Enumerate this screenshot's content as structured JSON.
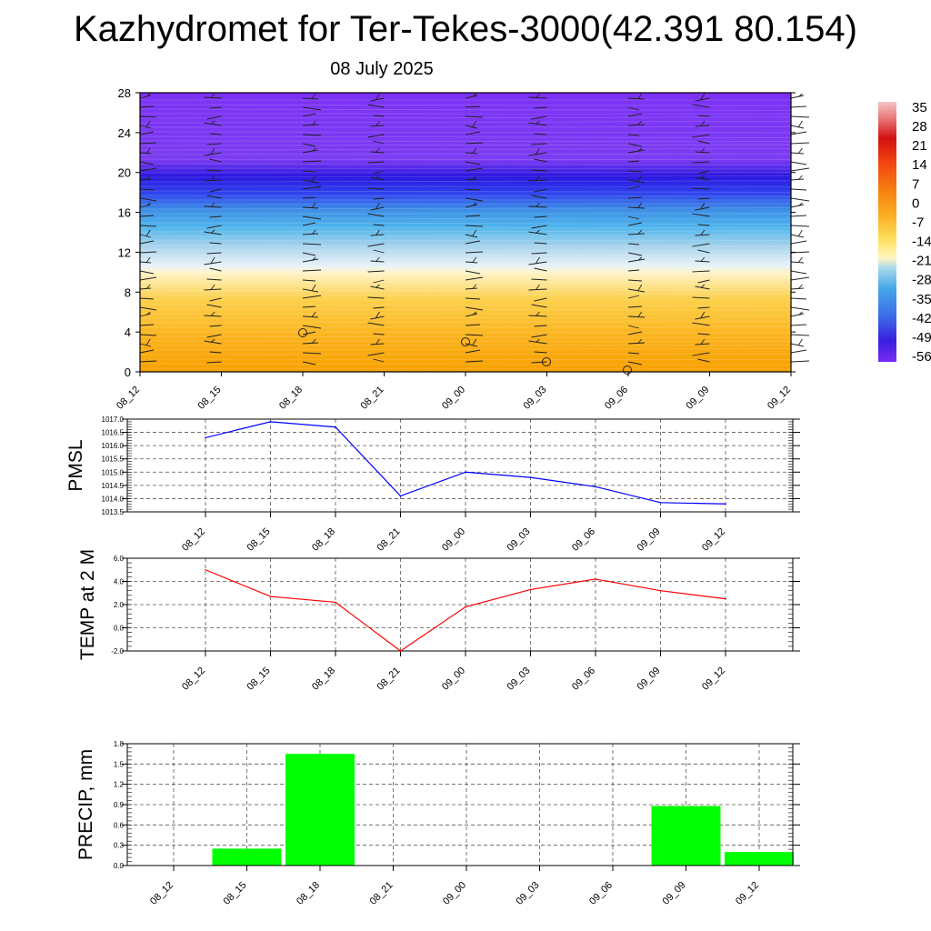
{
  "header": {
    "title": "Kazhydromet for Ter-Tekes-3000(42.391 80.154)",
    "subtitle": "08 July 2025"
  },
  "colors": {
    "pmsl_line": "#0000ff",
    "temp_line": "#ff0000",
    "precip_bar": "#00ff00"
  },
  "chart_data": [
    {
      "type": "heatmap",
      "title": "",
      "x": [
        "08_12",
        "08_15",
        "08_18",
        "08_21",
        "09_00",
        "09_03",
        "09_06",
        "09_09",
        "09_12"
      ],
      "y_ticks": [
        "0",
        "4",
        "8",
        "12",
        "16",
        "20",
        "24",
        "28"
      ],
      "ylim": [
        0,
        28
      ],
      "colorbar_labels": [
        "35",
        "28",
        "21",
        "14",
        "7",
        "0",
        "-7",
        "-14",
        "-21",
        "-28",
        "-35",
        "-42",
        "-49",
        "-56"
      ],
      "wind_barbs": true
    },
    {
      "type": "line",
      "ylabel": "PMSL",
      "categories": [
        "08_12",
        "08_15",
        "08_18",
        "08_21",
        "09_00",
        "09_03",
        "09_06",
        "09_09",
        "09_12"
      ],
      "values": [
        1016.3,
        1016.9,
        1016.7,
        1014.1,
        1015.0,
        1014.8,
        1014.45,
        1013.85,
        1013.8
      ],
      "ylim": [
        1013.5,
        1017.0
      ],
      "y_ticks": [
        "1013.5",
        "1014.0",
        "1014.5",
        "1015.0",
        "1015.5",
        "1016.0",
        "1016.5",
        "1017.0"
      ],
      "grid": true
    },
    {
      "type": "line",
      "ylabel": "TEMP at 2 M",
      "categories": [
        "08_12",
        "08_15",
        "08_18",
        "08_21",
        "09_00",
        "09_03",
        "09_06",
        "09_09",
        "09_12"
      ],
      "values": [
        5.0,
        2.7,
        2.2,
        -2.0,
        1.8,
        3.3,
        4.2,
        3.2,
        2.5
      ],
      "ylim": [
        -2.0,
        6.0
      ],
      "y_ticks": [
        "-2.0",
        "0.0",
        "2.0",
        "4.0",
        "6.0"
      ],
      "grid": true
    },
    {
      "type": "bar",
      "ylabel": "PRECIP, mm",
      "categories": [
        "08_12",
        "08_15",
        "08_18",
        "08_21",
        "09_00",
        "09_03",
        "09_06",
        "09_09",
        "09_12"
      ],
      "values": [
        0.0,
        0.25,
        1.65,
        0.0,
        0.0,
        0.0,
        0.0,
        0.88,
        0.2
      ],
      "ylim": [
        0.0,
        1.8
      ],
      "y_ticks": [
        "0.0",
        "0.3",
        "0.6",
        "0.9",
        "1.2",
        "1.5",
        "1.8"
      ],
      "grid": true
    }
  ]
}
